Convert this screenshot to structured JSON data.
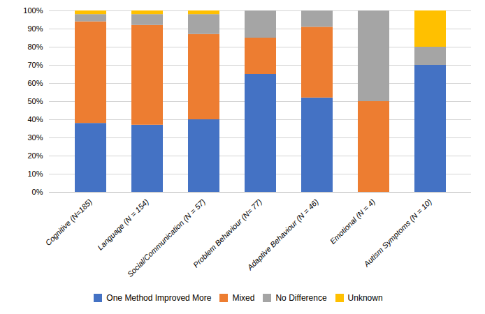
{
  "chart_data": {
    "type": "bar",
    "stacked": true,
    "categories": [
      "Cognitive (N=185)",
      "Language (N = 154)",
      "Social/Communication (N = 57)",
      "Problem Behaviour (N= 77)",
      "Adaptive Behaviour (N = 46)",
      "Emotional (N = 4)",
      "Autism Symptoms (N = 10)"
    ],
    "series": [
      {
        "name": "One Method Improved More",
        "color": "#4472C4",
        "values": [
          38,
          37,
          40,
          65,
          52,
          0,
          70
        ]
      },
      {
        "name": "Mixed",
        "color": "#ED7D31",
        "values": [
          56,
          55,
          47,
          20,
          39,
          50,
          0
        ]
      },
      {
        "name": "No Difference",
        "color": "#A5A5A5",
        "values": [
          4,
          6,
          11,
          15,
          9,
          50,
          10
        ]
      },
      {
        "name": "Unknown",
        "color": "#FFC000",
        "values": [
          2,
          2,
          2,
          0,
          0,
          0,
          20
        ]
      }
    ],
    "ylim": [
      0,
      100
    ],
    "yticks": [
      {
        "value": 0,
        "label": "0%"
      },
      {
        "value": 10,
        "label": "10%"
      },
      {
        "value": 20,
        "label": "20%"
      },
      {
        "value": 30,
        "label": "30%"
      },
      {
        "value": 40,
        "label": "40%"
      },
      {
        "value": 50,
        "label": "50%"
      },
      {
        "value": 60,
        "label": "60%"
      },
      {
        "value": 70,
        "label": "70%"
      },
      {
        "value": 80,
        "label": "80%"
      },
      {
        "value": 90,
        "label": "90%"
      },
      {
        "value": 100,
        "label": "100%"
      }
    ],
    "grid": true,
    "legend": "bottom"
  }
}
